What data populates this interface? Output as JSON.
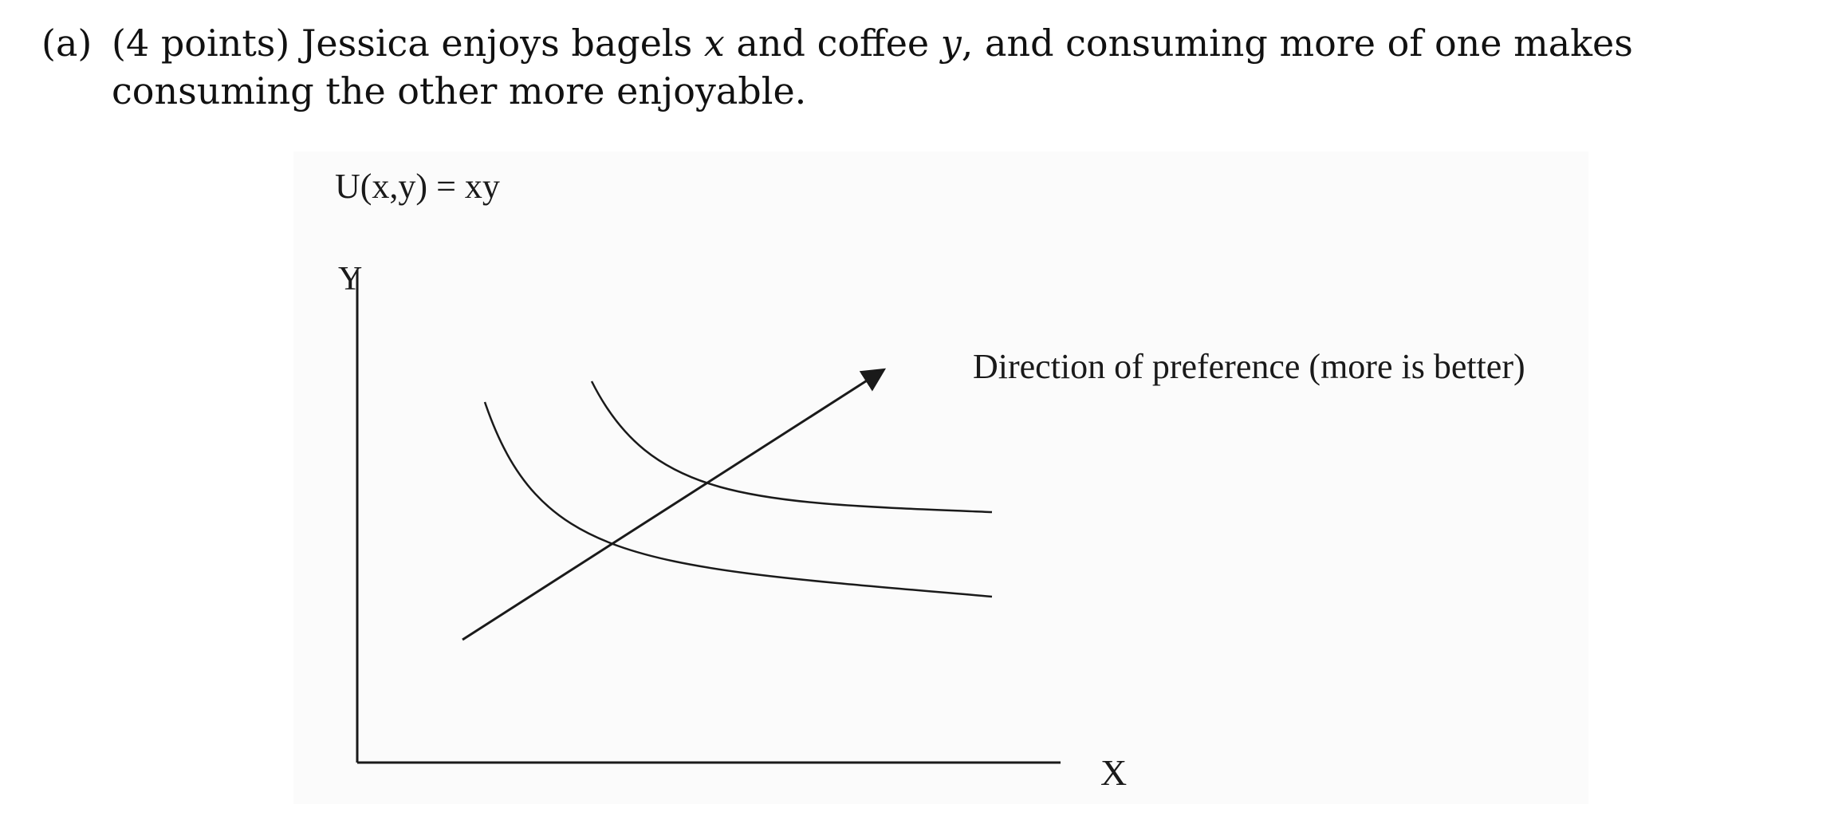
{
  "problem": {
    "label": "(a)",
    "text_before_x": "(4 points) Jessica enjoys bagels ",
    "var_x": "x",
    "text_mid": " and coffee ",
    "var_y": "y",
    "text_after": ", and consuming more of one makes consuming the other more enjoyable."
  },
  "figure": {
    "utility_label": "U(x,y) = xy",
    "y_axis_label": "Y",
    "x_axis_label": "X",
    "preference_label": "Direction of preference (more is better)",
    "indifference_curves": 2,
    "colors": {
      "ink": "#1a1a1a",
      "figure_background": "#fbfbfb"
    }
  }
}
